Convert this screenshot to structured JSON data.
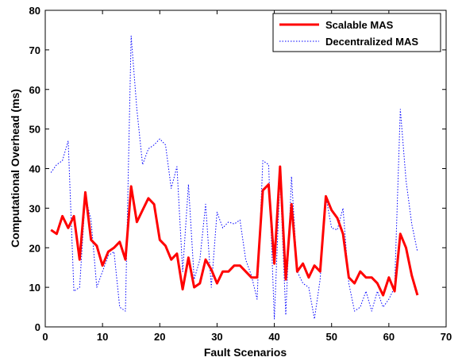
{
  "chart_data": {
    "type": "line",
    "xlabel": "Fault Scenarios",
    "ylabel": "Computational Overhead (ms)",
    "xlim": [
      0,
      70
    ],
    "ylim": [
      0,
      80
    ],
    "xticks": [
      "0",
      "10",
      "20",
      "30",
      "40",
      "50",
      "60",
      "70"
    ],
    "yticks": [
      "0",
      "10",
      "20",
      "30",
      "40",
      "50",
      "60",
      "70",
      "80"
    ],
    "legend_position": "top-right",
    "grid": false,
    "series": [
      {
        "name": "Scalable MAS",
        "color": "#ff0000",
        "style": "solid",
        "x": [
          1,
          2,
          3,
          4,
          5,
          6,
          7,
          8,
          9,
          10,
          11,
          12,
          13,
          14,
          15,
          16,
          17,
          18,
          19,
          20,
          21,
          22,
          23,
          24,
          25,
          26,
          27,
          28,
          29,
          30,
          31,
          32,
          33,
          34,
          35,
          36,
          37,
          38,
          39,
          40,
          41,
          42,
          43,
          44,
          45,
          46,
          47,
          48,
          49,
          50,
          51,
          52,
          53,
          54,
          55,
          56,
          57,
          58,
          59,
          60,
          61,
          62,
          63,
          64,
          65
        ],
        "values": [
          24.5,
          23.5,
          28,
          25,
          28,
          17,
          34,
          22,
          20.5,
          15.5,
          19,
          20,
          21.5,
          17,
          35.5,
          26.5,
          29.5,
          32.5,
          31,
          22,
          20.5,
          17,
          18.5,
          9.5,
          17.5,
          10,
          11,
          17,
          14.5,
          11,
          14,
          14,
          15.5,
          15.5,
          14,
          12.5,
          12.5,
          34.5,
          36,
          16,
          40.5,
          12,
          31,
          14,
          16,
          12.5,
          15.5,
          14,
          33,
          29.5,
          27.5,
          23.5,
          12.5,
          11,
          14,
          12.5,
          12.5,
          11,
          8,
          12.5,
          9,
          23.5,
          20,
          13,
          8
        ]
      },
      {
        "name": "Decentralized MAS",
        "color": "#0000ff",
        "style": "dotted",
        "x": [
          1,
          2,
          3,
          4,
          5,
          6,
          7,
          8,
          9,
          10,
          11,
          12,
          13,
          14,
          15,
          16,
          17,
          18,
          19,
          20,
          21,
          22,
          23,
          24,
          25,
          26,
          27,
          28,
          29,
          30,
          31,
          32,
          33,
          34,
          35,
          36,
          37,
          38,
          39,
          40,
          41,
          42,
          43,
          44,
          45,
          46,
          47,
          48,
          49,
          50,
          51,
          52,
          53,
          54,
          55,
          56,
          57,
          58,
          59,
          60,
          61,
          62,
          63,
          64,
          65
        ],
        "values": [
          39,
          41,
          42,
          47,
          9,
          10,
          33,
          27,
          10,
          14,
          18,
          19,
          5,
          4,
          73.5,
          55,
          41,
          45,
          46,
          47.5,
          46,
          35,
          40.5,
          14,
          36,
          12,
          17,
          31,
          10,
          29,
          25,
          26.5,
          26,
          27,
          17,
          13,
          7,
          42,
          41,
          2,
          38,
          3,
          38,
          14,
          11,
          10,
          2,
          12,
          33,
          25,
          24.5,
          30,
          11,
          4,
          5,
          9,
          4,
          9,
          5,
          7,
          10,
          55,
          37,
          26,
          19
        ]
      }
    ]
  }
}
